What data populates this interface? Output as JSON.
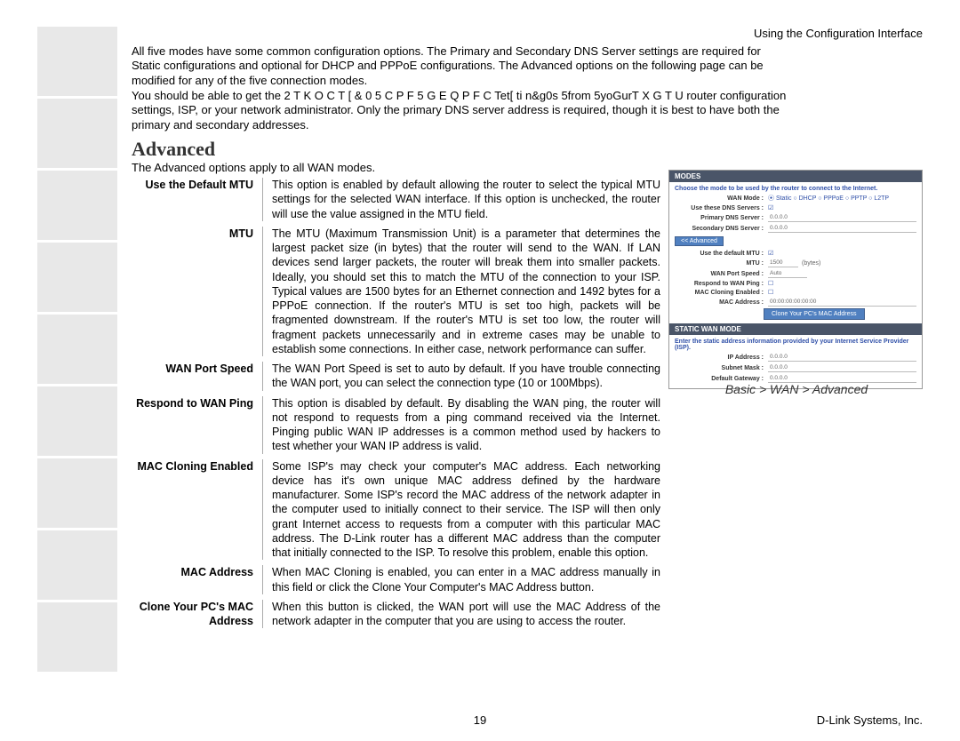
{
  "header": "Using the Configuration Interface",
  "intro_p1": "All five modes have some common configuration options. The Primary and Secondary DNS Server settings are required for Static configurations and optional for DHCP and PPPoE configurations. The Advanced options on the following page can be modified for any of the five connection modes.",
  "intro_p2": "You should be able to get the  2 T K O C T [  & 0 5   C P F   5 G E Q P F C Tet[ ti n&g0s 5from 5yoGurT X G T U  router configuration settings, ISP, or your network administrator. Only the primary DNS server address is required, though it is best to have both the primary and secondary addresses.",
  "section_title": "Advanced",
  "section_sub": "The Advanced options apply to all WAN modes.",
  "definitions": [
    {
      "label": "Use the Default MTU",
      "desc": "This option is enabled by default allowing the router to select the typical MTU settings for the selected WAN interface. If this option is unchecked, the router will use the value assigned in the MTU field."
    },
    {
      "label": "MTU",
      "desc": "The MTU (Maximum Transmission Unit) is a parameter that determines the largest packet size (in bytes) that the router will send to the WAN. If LAN devices send larger packets, the router will break them into smaller packets. Ideally, you should set this to match the MTU of the connection to your ISP. Typical values are 1500 bytes for an Ethernet connection and 1492 bytes for a PPPoE connection. If the router's MTU is set too high, packets will be fragmented downstream. If the router's MTU is set too low, the router will fragment packets unnecessarily and in extreme cases may be unable to establish some connections. In either case, network performance can suffer."
    },
    {
      "label": "WAN Port Speed",
      "desc": "The WAN Port Speed is set to auto by default. If you have trouble connecting the WAN port, you can select the connection type (10 or 100Mbps)."
    },
    {
      "label": "Respond to WAN Ping",
      "desc": "This option is disabled by default. By disabling the WAN ping, the router will not respond to requests from a ping command received via the Internet. Pinging public WAN IP addresses is a common method used by hackers to test whether your WAN IP address is valid."
    },
    {
      "label": "MAC Cloning Enabled",
      "desc": "Some ISP's may check your computer's MAC address. Each networking device has it's own unique MAC address defined by the hardware manufacturer. Some ISP's record the MAC address of the network adapter in the computer used to initially connect to their service. The ISP will then only grant Internet access to requests from a computer with this particular MAC address. The D-Link router has a different MAC address than the computer that initially connected to the ISP. To resolve this problem, enable this option."
    },
    {
      "label": "MAC Address",
      "desc": "When MAC Cloning is enabled, you can enter in a MAC address manually in this field or click the Clone Your Computer's MAC Address button."
    },
    {
      "label": "Clone Your PC's MAC Address",
      "desc": "When this button is clicked, the WAN port will use the MAC Address of the network adapter in the computer that you are using to access the router."
    }
  ],
  "screenshot": {
    "modes_header": "MODES",
    "modes_desc": "Choose the mode to be used by the router to connect to the Internet.",
    "wan_mode_label": "WAN Mode :",
    "wan_modes": "⦿ Static ○ DHCP ○ PPPoE ○ PPTP ○ L2TP",
    "use_dns_label": "Use these DNS Servers :",
    "primary_dns_label": "Primary DNS Server :",
    "primary_dns_val": "0.0.0.0",
    "secondary_dns_label": "Secondary DNS Server :",
    "secondary_dns_val": "0.0.0.0",
    "adv_btn": "<< Advanced",
    "default_mtu_label": "Use the default MTU :",
    "mtu_label": "MTU :",
    "mtu_val": "1500",
    "mtu_unit": "(bytes)",
    "wan_port_label": "WAN Port Speed :",
    "wan_port_val": "Auto",
    "respond_ping_label": "Respond to WAN Ping :",
    "mac_cloning_label": "MAC Cloning Enabled :",
    "mac_addr_label": "MAC Address :",
    "mac_addr_val": "00:00:00:00:00:00",
    "clone_btn": "Clone Your PC's MAC Address",
    "static_header": "STATIC WAN MODE",
    "static_desc": "Enter the static address information provided by your Internet Service Provider (ISP).",
    "ip_label": "IP Address :",
    "ip_val": "0.0.0.0",
    "mask_label": "Subnet Mask :",
    "mask_val": "0.0.0.0",
    "gw_label": "Default Gateway :",
    "gw_val": "0.0.0.0"
  },
  "screenshot_caption": "Basic > WAN > Advanced",
  "page_number": "19",
  "footer": "D-Link Systems, Inc."
}
